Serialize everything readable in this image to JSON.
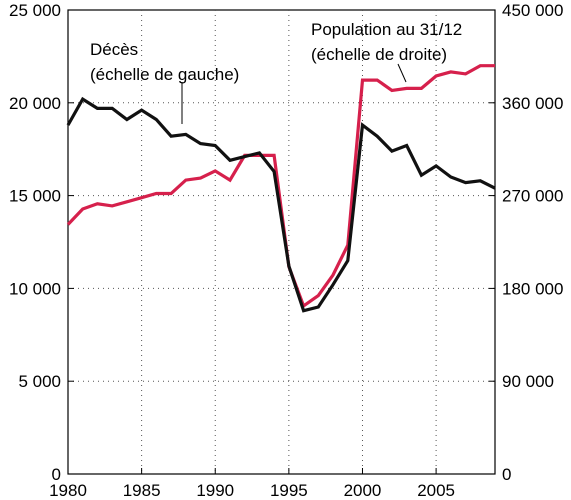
{
  "chart_data": {
    "type": "line",
    "x": [
      1980,
      1981,
      1982,
      1983,
      1984,
      1985,
      1986,
      1987,
      1988,
      1989,
      1990,
      1991,
      1992,
      1993,
      1994,
      1995,
      1996,
      1997,
      1998,
      1999,
      2000,
      2001,
      2002,
      2003,
      2004,
      2005,
      2006,
      2007,
      2008,
      2009
    ],
    "xlim": [
      1980,
      2009
    ],
    "x_ticks": [
      1980,
      1985,
      1990,
      1995,
      2000,
      2005
    ],
    "x_tick_labels": [
      "1980",
      "1985",
      "1990",
      "1995",
      "2000",
      "2005"
    ],
    "ylim_left": [
      0,
      25000
    ],
    "left_ticks": [
      0,
      5000,
      10000,
      15000,
      20000,
      25000
    ],
    "left_tick_labels": [
      "0",
      "5 000",
      "10 000",
      "15 000",
      "20 000",
      "25 000"
    ],
    "ylim_right": [
      0,
      450000
    ],
    "right_ticks": [
      0,
      90000,
      180000,
      270000,
      360000,
      450000
    ],
    "right_tick_labels": [
      "0",
      "90 000",
      "180 000",
      "270 000",
      "360 000",
      "450 000"
    ],
    "grid": "dotted",
    "series": [
      {
        "name_lines": [
          "Décès",
          "(échelle de gauche)"
        ],
        "axis": "left",
        "color": "#111111",
        "values": [
          18800,
          20200,
          19700,
          19700,
          19100,
          19600,
          19100,
          18200,
          18300,
          17800,
          17700,
          16900,
          17100,
          17300,
          16300,
          11200,
          8800,
          9000,
          10200,
          11500,
          18800,
          18200,
          17400,
          17700,
          16100,
          16600,
          16000,
          15700,
          15800,
          15400
        ]
      },
      {
        "name_lines": [
          "Population au 31/12",
          "(échelle de droite)"
        ],
        "axis": "right",
        "color": "#d6204c",
        "values": [
          242000,
          257000,
          262000,
          260000,
          264000,
          268000,
          272000,
          272000,
          285000,
          287000,
          294000,
          285000,
          309000,
          309000,
          309000,
          201000,
          163000,
          173000,
          193000,
          222000,
          382000,
          382000,
          372000,
          374000,
          374000,
          386000,
          390000,
          388000,
          396000,
          396000
        ]
      }
    ]
  }
}
